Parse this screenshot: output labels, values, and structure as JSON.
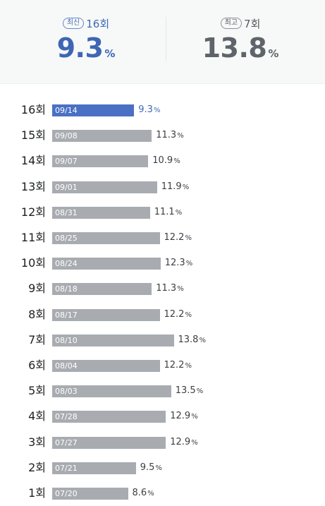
{
  "summary": {
    "latest": {
      "tag": "최신",
      "episode": "16회",
      "value": "9.3",
      "unit": "%"
    },
    "best": {
      "tag": "최고",
      "episode": "7회",
      "value": "13.8",
      "unit": "%"
    }
  },
  "chart_data": {
    "type": "bar",
    "orientation": "horizontal",
    "unit": "%",
    "categories": [
      "16회",
      "15회",
      "14회",
      "13회",
      "12회",
      "11회",
      "10회",
      "9회",
      "8회",
      "7회",
      "6회",
      "5회",
      "4회",
      "3회",
      "2회",
      "1회"
    ],
    "dates": [
      "09/14",
      "09/08",
      "09/07",
      "09/01",
      "08/31",
      "08/25",
      "08/24",
      "08/18",
      "08/17",
      "08/10",
      "08/04",
      "08/03",
      "07/28",
      "07/27",
      "07/21",
      "07/20"
    ],
    "values": [
      9.3,
      11.3,
      10.9,
      11.9,
      11.1,
      12.2,
      12.3,
      11.3,
      12.2,
      13.8,
      12.2,
      13.5,
      12.9,
      12.9,
      9.5,
      8.6
    ],
    "highlight_index": 0,
    "colors": {
      "highlight": "#4a70c4",
      "default": "#a8acb1"
    }
  }
}
